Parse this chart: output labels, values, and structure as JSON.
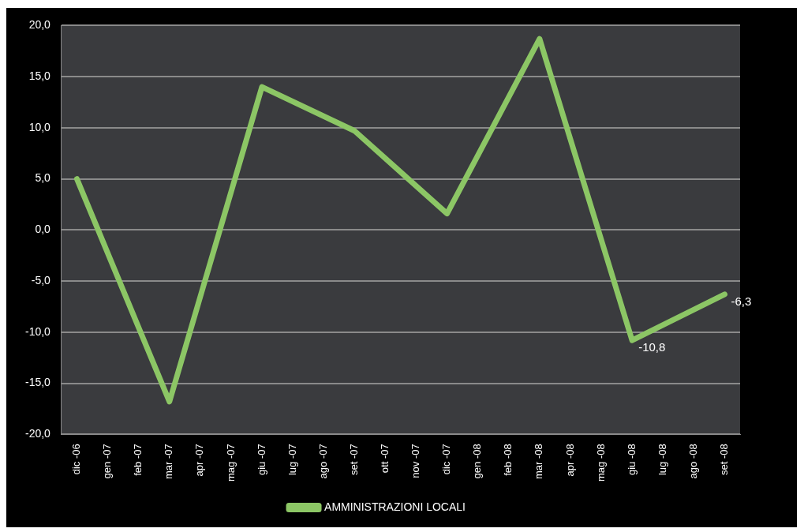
{
  "chart_data": {
    "type": "line",
    "categories": [
      "dic -06",
      "gen -07",
      "feb -07",
      "mar -07",
      "apr -07",
      "mag -07",
      "giu -07",
      "lug -07",
      "ago -07",
      "set -07",
      "ott -07",
      "nov -07",
      "dic -07",
      "gen -08",
      "feb -08",
      "mar -08",
      "apr -08",
      "mag -08",
      "giu -08",
      "lug -08",
      "ago -08",
      "set -08"
    ],
    "series": [
      {
        "name": "AMMINISTRAZIONI LOCALI",
        "color": "#8cc665",
        "values": [
          5.0,
          null,
          null,
          -16.8,
          null,
          null,
          14.0,
          null,
          null,
          9.7,
          null,
          null,
          1.6,
          null,
          null,
          18.7,
          null,
          null,
          -10.8,
          null,
          null,
          -6.3
        ],
        "value_labels": [
          null,
          null,
          null,
          null,
          null,
          null,
          null,
          null,
          null,
          null,
          null,
          null,
          null,
          null,
          null,
          null,
          null,
          null,
          "-10,8",
          null,
          null,
          "-6,3"
        ]
      }
    ],
    "ylim": [
      -20,
      20
    ],
    "yticks": [
      {
        "value": -20,
        "label": "-20,0"
      },
      {
        "value": -15,
        "label": "-15,0"
      },
      {
        "value": -10,
        "label": "-10,0"
      },
      {
        "value": -5,
        "label": "-5,0"
      },
      {
        "value": 0,
        "label": "0,0"
      },
      {
        "value": 5,
        "label": "5,0"
      },
      {
        "value": 10,
        "label": "10,0"
      },
      {
        "value": 15,
        "label": "15,0"
      },
      {
        "value": 20,
        "label": "20,0"
      }
    ],
    "grid": "y",
    "legend": "bottom"
  }
}
